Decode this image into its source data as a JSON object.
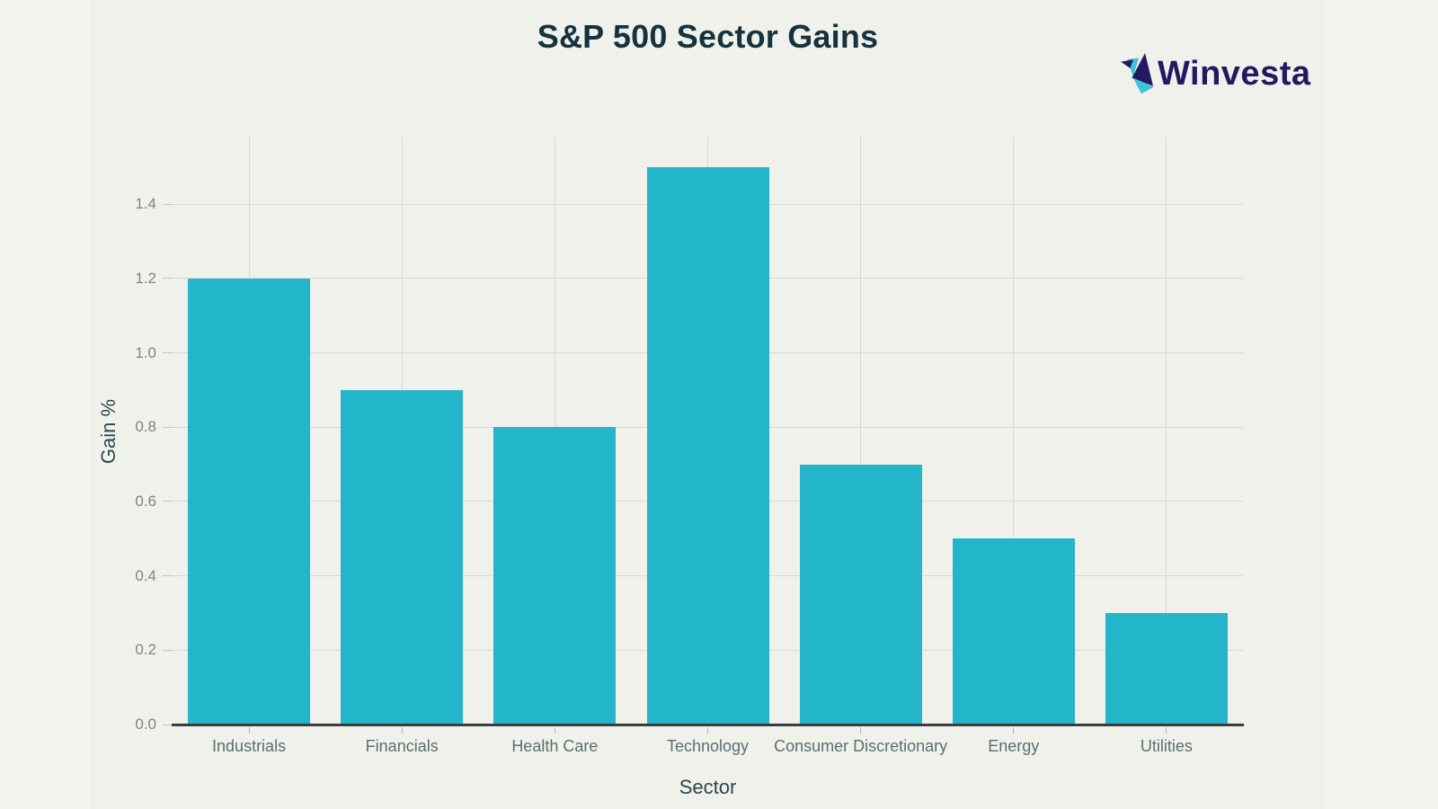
{
  "page": {
    "logo_text": "Winvesta"
  },
  "chart_data": {
    "type": "bar",
    "title": "S&P 500 Sector Gains",
    "xlabel": "Sector",
    "ylabel": "Gain %",
    "categories": [
      "Industrials",
      "Financials",
      "Health Care",
      "Technology",
      "Consumer Discretionary",
      "Energy",
      "Utilities"
    ],
    "values": [
      1.2,
      0.9,
      0.8,
      1.5,
      0.7,
      0.5,
      0.3
    ],
    "yticks": [
      0.0,
      0.2,
      0.4,
      0.6,
      0.8,
      1.0,
      1.2,
      1.4
    ],
    "ylim": [
      0,
      1.582
    ],
    "grid": true,
    "legend_position": "none",
    "bar_color": "#23b5c9",
    "figure_background": "#f0f1ea",
    "page_background": "#f6f4ee",
    "grid_color": "#d7d8d1",
    "axis_line_color": "#3c3c3c",
    "y_tick_label_color": "#7b858d",
    "x_tick_label_color": "#5e6c74",
    "title_color": "#15333f",
    "logo_navy": "#211a63",
    "logo_cyan": "#3cc4d9"
  }
}
